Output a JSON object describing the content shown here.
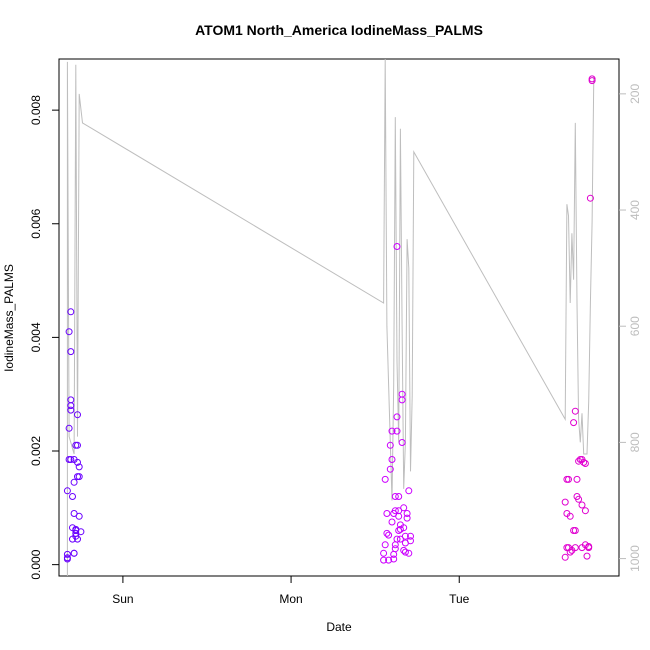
{
  "chart_data": {
    "type": "scatter",
    "title": "ATOM1 North_America IodineMass_PALMS",
    "xlabel": "Date",
    "ylabel": "IodineMass_PALMS",
    "x_axis_type": "date",
    "x_ticks": [
      "Sun",
      "Mon",
      "Tue"
    ],
    "xlim_day_units": [
      -0.38,
      2.95
    ],
    "ylim": [
      -0.0002,
      0.0089
    ],
    "y_ticks": [
      "0.000",
      "0.002",
      "0.004",
      "0.006",
      "0.008"
    ],
    "y2_ticks": [
      "200",
      "400",
      "600",
      "800",
      "1000"
    ],
    "y2lim": [
      1030,
      140
    ],
    "y2_reversed": true,
    "colors": {
      "line": "#bebebe",
      "early": "#6a00ff",
      "late": "#e800e8",
      "axis": "#000000",
      "right_axis": "#bdbdbd"
    },
    "series": [
      {
        "kind": "points",
        "points": [
          [
            -0.33,
            0.0001
          ],
          [
            -0.33,
            0.00012
          ],
          [
            -0.33,
            0.00018
          ],
          [
            -0.33,
            0.0013
          ],
          [
            -0.32,
            0.00185
          ],
          [
            -0.32,
            0.0024
          ],
          [
            -0.32,
            0.0041
          ],
          [
            -0.31,
            0.00445
          ],
          [
            -0.31,
            0.00375
          ],
          [
            -0.31,
            0.0029
          ],
          [
            -0.31,
            0.0028
          ],
          [
            -0.31,
            0.00272
          ],
          [
            -0.31,
            0.00185
          ],
          [
            -0.3,
            0.00065
          ],
          [
            -0.3,
            0.00045
          ],
          [
            -0.3,
            0.0012
          ],
          [
            -0.29,
            0.00185
          ],
          [
            -0.29,
            0.00145
          ],
          [
            -0.29,
            0.0009
          ],
          [
            -0.29,
            0.0002
          ],
          [
            -0.29,
            0.0002
          ],
          [
            -0.28,
            0.0006
          ],
          [
            -0.28,
            0.00055
          ],
          [
            -0.28,
            0.0005
          ],
          [
            -0.28,
            0.00062
          ],
          [
            -0.28,
            0.0021
          ],
          [
            -0.27,
            0.0021
          ],
          [
            -0.27,
            0.00155
          ],
          [
            -0.27,
            0.00264
          ],
          [
            -0.27,
            0.0018
          ],
          [
            -0.27,
            0.00045
          ],
          [
            -0.26,
            0.00155
          ],
          [
            -0.26,
            0.00172
          ],
          [
            -0.26,
            0.00085
          ],
          [
            -0.25,
            0.00058
          ]
        ]
      },
      {
        "kind": "points",
        "points": [
          [
            1.55,
            8e-05
          ],
          [
            1.55,
            0.0002
          ],
          [
            1.56,
            0.00035
          ],
          [
            1.56,
            0.0015
          ],
          [
            1.57,
            0.00055
          ],
          [
            1.57,
            0.0009
          ],
          [
            1.58,
            8e-05
          ],
          [
            1.58,
            0.00052
          ],
          [
            1.59,
            0.0021
          ],
          [
            1.59,
            0.00168
          ],
          [
            1.6,
            0.00235
          ],
          [
            1.6,
            0.00185
          ],
          [
            1.6,
            0.00075
          ],
          [
            1.61,
            0.00018
          ],
          [
            1.61,
            0.0001
          ],
          [
            1.61,
            0.0009
          ],
          [
            1.62,
            0.00095
          ],
          [
            1.62,
            0.0012
          ],
          [
            1.62,
            0.00028
          ],
          [
            1.62,
            0.00035
          ],
          [
            1.63,
            0.0026
          ],
          [
            1.63,
            0.00235
          ],
          [
            1.63,
            0.0056
          ],
          [
            1.63,
            0.00045
          ],
          [
            1.64,
            0.0012
          ],
          [
            1.64,
            0.00095
          ],
          [
            1.64,
            0.00085
          ],
          [
            1.64,
            0.0006
          ],
          [
            1.65,
            0.00062
          ],
          [
            1.65,
            0.00045
          ],
          [
            1.65,
            0.0007
          ],
          [
            1.66,
            0.00215
          ],
          [
            1.66,
            0.0029
          ],
          [
            1.66,
            0.003
          ],
          [
            1.67,
            0.001
          ],
          [
            1.67,
            0.00065
          ],
          [
            1.67,
            0.00025
          ],
          [
            1.68,
            0.0005
          ],
          [
            1.68,
            0.00038
          ],
          [
            1.68,
            0.00022
          ],
          [
            1.69,
            0.00082
          ],
          [
            1.69,
            0.0009
          ],
          [
            1.7,
            0.0013
          ],
          [
            1.7,
            0.0002
          ],
          [
            1.71,
            0.00042
          ],
          [
            1.71,
            0.0005
          ]
        ]
      },
      {
        "kind": "points",
        "points": [
          [
            2.63,
            0.00013
          ],
          [
            2.63,
            0.0011
          ],
          [
            2.64,
            0.0009
          ],
          [
            2.64,
            0.0015
          ],
          [
            2.64,
            0.0003
          ],
          [
            2.65,
            0.0015
          ],
          [
            2.65,
            0.0003
          ],
          [
            2.66,
            0.00085
          ],
          [
            2.66,
            0.00022
          ],
          [
            2.67,
            0.00025
          ],
          [
            2.68,
            0.0006
          ],
          [
            2.68,
            0.0025
          ],
          [
            2.69,
            0.0006
          ],
          [
            2.69,
            0.0027
          ],
          [
            2.69,
            0.0003
          ],
          [
            2.7,
            0.0012
          ],
          [
            2.7,
            0.0015
          ],
          [
            2.71,
            0.00115
          ],
          [
            2.71,
            0.00182
          ],
          [
            2.72,
            0.00185
          ],
          [
            2.73,
            0.00185
          ],
          [
            2.73,
            0.00105
          ],
          [
            2.73,
            0.0003
          ],
          [
            2.74,
            0.0018
          ],
          [
            2.75,
            0.00178
          ],
          [
            2.75,
            0.00035
          ],
          [
            2.75,
            0.00095
          ],
          [
            2.76,
            0.00015
          ],
          [
            2.77,
            0.00032
          ],
          [
            2.77,
            0.0003
          ],
          [
            2.78,
            0.00645
          ],
          [
            2.79,
            0.00855
          ],
          [
            2.79,
            0.00852
          ]
        ]
      }
    ]
  }
}
